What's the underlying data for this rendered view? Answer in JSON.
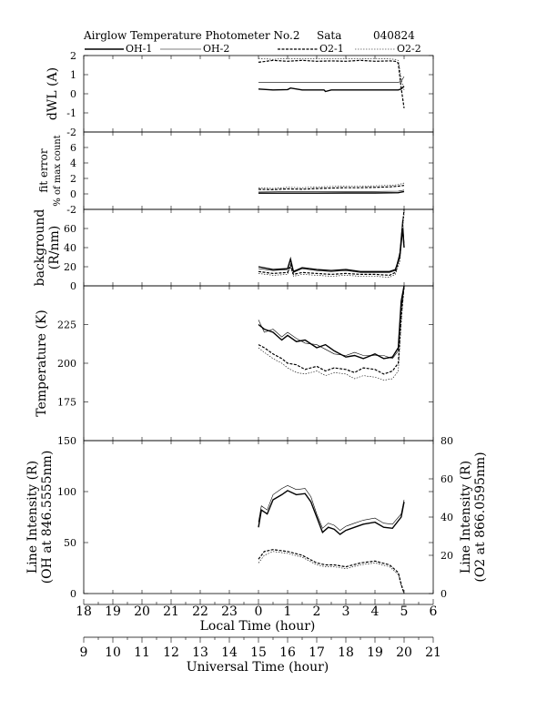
{
  "header": {
    "title": "Airglow Temperature Photometer No.2",
    "station": "Sata",
    "date": "040824"
  },
  "legend": [
    {
      "label": "OH-1",
      "style": "solid-thick"
    },
    {
      "label": "OH-2",
      "style": "solid-thin"
    },
    {
      "label": "O2-1",
      "style": "dashed-thick"
    },
    {
      "label": "O2-2",
      "style": "dotted-thin"
    }
  ],
  "axes": {
    "local_time_label": "Local Time (hour)",
    "universal_time_label": "Universal Time (hour)",
    "local_time_ticks": [
      "18",
      "19",
      "20",
      "21",
      "22",
      "23",
      "0",
      "1",
      "2",
      "3",
      "4",
      "5",
      "6"
    ],
    "universal_time_ticks": [
      "9",
      "10",
      "11",
      "12",
      "13",
      "14",
      "15",
      "16",
      "17",
      "18",
      "19",
      "20",
      "21"
    ],
    "ut_range": [
      9,
      21
    ]
  },
  "chart_data": [
    {
      "type": "line",
      "panel": "dwl",
      "ylabel": "dWL (A)",
      "ylim": [
        -2,
        2
      ],
      "yticks": [
        "-2",
        "-1",
        "0",
        "1",
        "2"
      ],
      "series": [
        {
          "name": "OH-1",
          "x": [
            15.0,
            15.5,
            16.0,
            16.1,
            16.5,
            17.0,
            17.25,
            17.3,
            17.5,
            18.0,
            18.5,
            19.0,
            19.5,
            19.8,
            19.9,
            20.0
          ],
          "y": [
            0.25,
            0.2,
            0.22,
            0.3,
            0.2,
            0.2,
            0.2,
            0.12,
            0.2,
            0.2,
            0.2,
            0.2,
            0.2,
            0.2,
            0.25,
            0.4
          ]
        },
        {
          "name": "OH-2",
          "x": [
            15.0,
            16.0,
            17.0,
            18.0,
            19.0,
            19.8,
            19.9,
            20.0
          ],
          "y": [
            0.6,
            0.6,
            0.6,
            0.6,
            0.6,
            0.6,
            0.65,
            0.9
          ]
        },
        {
          "name": "O2-1",
          "x": [
            15.0,
            15.5,
            16.0,
            16.5,
            17.0,
            17.5,
            18.0,
            18.5,
            19.0,
            19.5,
            19.7,
            19.8,
            19.9,
            20.0
          ],
          "y": [
            1.65,
            1.75,
            1.7,
            1.75,
            1.7,
            1.72,
            1.7,
            1.75,
            1.7,
            1.72,
            1.7,
            1.6,
            0.3,
            -0.75
          ]
        },
        {
          "name": "O2-2",
          "x": [
            15.0,
            15.5,
            16.0,
            16.5,
            17.0,
            17.5,
            18.0,
            18.5,
            19.0,
            19.5,
            19.7,
            19.8,
            19.9,
            20.0
          ],
          "y": [
            1.85,
            1.8,
            1.85,
            1.82,
            1.85,
            1.82,
            1.85,
            1.82,
            1.85,
            1.82,
            1.8,
            1.75,
            0.8,
            0.2
          ]
        }
      ]
    },
    {
      "type": "line",
      "panel": "fit_error",
      "ylabel": "fit error",
      "ylabel2": "% of max count",
      "ylim": [
        -2,
        8
      ],
      "yticks": [
        "-2",
        "0",
        "2",
        "4",
        "6"
      ],
      "series": [
        {
          "name": "OH-1",
          "x": [
            15.0,
            16.0,
            17.0,
            18.0,
            19.0,
            19.8,
            20.0
          ],
          "y": [
            0.1,
            0.1,
            0.1,
            0.12,
            0.12,
            0.15,
            0.3
          ]
        },
        {
          "name": "OH-2",
          "x": [
            15.0,
            16.0,
            17.0,
            18.0,
            19.0,
            19.8,
            20.0
          ],
          "y": [
            0.25,
            0.28,
            0.3,
            0.3,
            0.32,
            0.35,
            0.5
          ]
        },
        {
          "name": "O2-1",
          "x": [
            15.0,
            15.5,
            16.0,
            16.5,
            17.0,
            17.5,
            18.0,
            18.5,
            19.0,
            19.5,
            19.8,
            20.0
          ],
          "y": [
            0.6,
            0.55,
            0.65,
            0.6,
            0.7,
            0.75,
            0.8,
            0.8,
            0.85,
            0.9,
            1.0,
            1.1
          ]
        },
        {
          "name": "O2-2",
          "x": [
            15.0,
            15.5,
            16.0,
            16.5,
            17.0,
            17.5,
            18.0,
            18.5,
            19.0,
            19.5,
            19.8,
            20.0
          ],
          "y": [
            0.8,
            0.7,
            0.85,
            0.8,
            0.9,
            0.95,
            1.0,
            1.0,
            1.05,
            1.1,
            1.2,
            1.4
          ]
        }
      ]
    },
    {
      "type": "line",
      "panel": "background",
      "ylabel": "background",
      "ylabel2": "(R/nm)",
      "ylim": [
        0,
        80
      ],
      "yticks": [
        "0",
        "20",
        "40",
        "60"
      ],
      "series": [
        {
          "name": "OH-1",
          "x": [
            15.0,
            15.5,
            16.0,
            16.1,
            16.2,
            16.5,
            17.0,
            17.5,
            18.0,
            18.5,
            19.0,
            19.5,
            19.7,
            19.85,
            19.95,
            20.0
          ],
          "y": [
            20,
            17,
            18,
            28,
            15,
            19,
            17,
            16,
            17,
            15,
            15,
            15,
            17,
            30,
            60,
            40
          ]
        },
        {
          "name": "OH-2",
          "x": [
            15.0,
            15.5,
            16.0,
            16.1,
            16.2,
            16.5,
            17.0,
            17.5,
            18.0,
            18.5,
            19.0,
            19.5,
            19.7,
            19.85,
            19.95,
            20.0
          ],
          "y": [
            18,
            16,
            17,
            27,
            14,
            18,
            16,
            15,
            16,
            14,
            14,
            14,
            16,
            35,
            70,
            45
          ]
        },
        {
          "name": "O2-1",
          "x": [
            15.0,
            15.5,
            16.0,
            16.1,
            16.2,
            16.5,
            17.0,
            17.5,
            18.0,
            18.5,
            19.0,
            19.5,
            19.7,
            19.85,
            19.95,
            20.0
          ],
          "y": [
            15,
            13,
            14,
            22,
            12,
            14,
            13,
            12,
            13,
            12,
            12,
            11,
            14,
            30,
            65,
            80
          ]
        },
        {
          "name": "O2-2",
          "x": [
            15.0,
            15.5,
            16.0,
            16.1,
            16.2,
            16.5,
            17.0,
            17.5,
            18.0,
            18.5,
            19.0,
            19.5,
            19.7,
            19.85,
            19.95,
            20.0
          ],
          "y": [
            13,
            11,
            12,
            20,
            10,
            12,
            11,
            10,
            11,
            10,
            10,
            9,
            12,
            25,
            60,
            75
          ]
        }
      ]
    },
    {
      "type": "line",
      "panel": "temperature",
      "ylabel": "Temperature (K)",
      "ylim": [
        150,
        250
      ],
      "yticks": [
        "175",
        "200",
        "225"
      ],
      "series": [
        {
          "name": "OH-1",
          "x": [
            15.0,
            15.2,
            15.5,
            15.8,
            16.0,
            16.3,
            16.6,
            17.0,
            17.3,
            17.6,
            18.0,
            18.3,
            18.6,
            19.0,
            19.3,
            19.6,
            19.8,
            19.9,
            20.0
          ],
          "y": [
            225,
            222,
            220,
            215,
            218,
            214,
            215,
            210,
            212,
            208,
            204,
            205,
            203,
            206,
            203,
            204,
            210,
            240,
            250
          ]
        },
        {
          "name": "OH-2",
          "x": [
            15.0,
            15.2,
            15.5,
            15.8,
            16.0,
            16.3,
            16.6,
            17.0,
            17.3,
            17.6,
            18.0,
            18.3,
            18.6,
            19.0,
            19.3,
            19.6,
            19.8,
            19.9,
            20.0
          ],
          "y": [
            228,
            220,
            222,
            217,
            220,
            216,
            213,
            212,
            209,
            206,
            205,
            207,
            205,
            205,
            205,
            203,
            208,
            235,
            250
          ]
        },
        {
          "name": "O2-1",
          "x": [
            15.0,
            15.2,
            15.5,
            15.8,
            16.0,
            16.3,
            16.6,
            17.0,
            17.3,
            17.6,
            18.0,
            18.3,
            18.6,
            19.0,
            19.3,
            19.6,
            19.8,
            19.9,
            20.0
          ],
          "y": [
            212,
            210,
            206,
            203,
            200,
            199,
            196,
            198,
            195,
            197,
            196,
            194,
            197,
            196,
            193,
            195,
            200,
            230,
            250
          ]
        },
        {
          "name": "O2-2",
          "x": [
            15.0,
            15.2,
            15.5,
            15.8,
            16.0,
            16.3,
            16.6,
            17.0,
            17.3,
            17.6,
            18.0,
            18.3,
            18.6,
            19.0,
            19.3,
            19.6,
            19.8,
            19.9,
            20.0
          ],
          "y": [
            210,
            207,
            203,
            200,
            197,
            194,
            193,
            195,
            192,
            194,
            193,
            190,
            192,
            191,
            189,
            190,
            195,
            225,
            250
          ]
        }
      ]
    },
    {
      "type": "line",
      "panel": "intensity",
      "ylabel": "Line Intensity (R)",
      "ylabel2": "(OH at 846.5555nm)",
      "ylabel_right": "Line Intensity (R)",
      "ylabel_right2": "(O2 at 866.0595nm)",
      "ylim": [
        0,
        150
      ],
      "ylim_right": [
        0,
        80
      ],
      "yticks": [
        "0",
        "50",
        "100",
        "150"
      ],
      "yticks_right": [
        "0",
        "20",
        "40",
        "60",
        "80"
      ],
      "series": [
        {
          "name": "OH-1",
          "axis": "left",
          "x": [
            15.0,
            15.1,
            15.3,
            15.5,
            15.8,
            16.0,
            16.3,
            16.6,
            16.8,
            17.0,
            17.2,
            17.4,
            17.6,
            17.8,
            18.0,
            18.3,
            18.6,
            19.0,
            19.3,
            19.6,
            19.9,
            20.0
          ],
          "y": [
            65,
            82,
            78,
            92,
            97,
            101,
            97,
            98,
            90,
            75,
            60,
            65,
            63,
            58,
            62,
            65,
            68,
            70,
            65,
            64,
            75,
            90
          ]
        },
        {
          "name": "OH-2",
          "axis": "left",
          "x": [
            15.0,
            15.1,
            15.3,
            15.5,
            15.8,
            16.0,
            16.3,
            16.6,
            16.8,
            17.0,
            17.2,
            17.4,
            17.6,
            17.8,
            18.0,
            18.3,
            18.6,
            19.0,
            19.3,
            19.6,
            19.9,
            20.0
          ],
          "y": [
            70,
            86,
            82,
            97,
            103,
            106,
            102,
            103,
            95,
            78,
            64,
            69,
            67,
            62,
            66,
            69,
            72,
            74,
            69,
            68,
            78,
            92
          ]
        },
        {
          "name": "O2-1",
          "axis": "right",
          "x": [
            15.0,
            15.2,
            15.5,
            16.0,
            16.5,
            17.0,
            17.3,
            17.6,
            18.0,
            18.5,
            19.0,
            19.5,
            19.8,
            19.9,
            20.0
          ],
          "y": [
            18,
            22,
            23,
            22,
            20,
            16,
            15,
            15,
            14,
            16,
            17,
            15,
            11,
            5,
            0
          ]
        },
        {
          "name": "O2-2",
          "axis": "right",
          "x": [
            15.0,
            15.2,
            15.5,
            16.0,
            16.5,
            17.0,
            17.3,
            17.6,
            18.0,
            18.5,
            19.0,
            19.5,
            19.8,
            19.9,
            20.0
          ],
          "y": [
            16,
            20,
            22,
            21,
            19,
            15,
            14,
            14,
            13,
            15,
            16,
            14,
            10,
            4,
            0
          ]
        }
      ]
    }
  ]
}
